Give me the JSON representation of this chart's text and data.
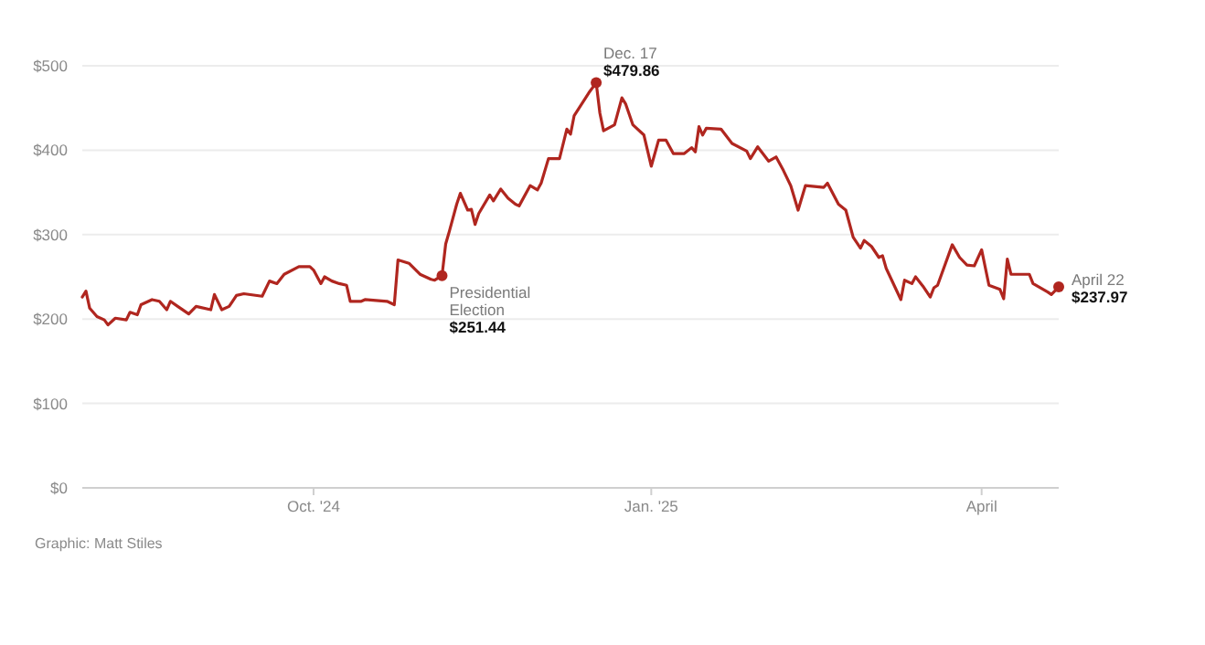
{
  "chart_data": {
    "type": "line",
    "color": "#b0261f",
    "grid": "y",
    "marker": "none",
    "line_style": "solid",
    "x": [
      "2024-07-30",
      "2024-07-31",
      "2024-08-01",
      "2024-08-03",
      "2024-08-05",
      "2024-08-06",
      "2024-08-08",
      "2024-08-11",
      "2024-08-12",
      "2024-08-14",
      "2024-08-15",
      "2024-08-18",
      "2024-08-20",
      "2024-08-22",
      "2024-08-23",
      "2024-08-25",
      "2024-08-28",
      "2024-08-30",
      "2024-09-03",
      "2024-09-04",
      "2024-09-06",
      "2024-09-08",
      "2024-09-10",
      "2024-09-12",
      "2024-09-17",
      "2024-09-19",
      "2024-09-21",
      "2024-09-23",
      "2024-09-27",
      "2024-09-30",
      "2024-10-01",
      "2024-10-03",
      "2024-10-04",
      "2024-10-06",
      "2024-10-08",
      "2024-10-10",
      "2024-10-11",
      "2024-10-14",
      "2024-10-15",
      "2024-10-21",
      "2024-10-23",
      "2024-10-24",
      "2024-10-27",
      "2024-10-30",
      "2024-11-02",
      "2024-11-03",
      "2024-11-05",
      "2024-11-06",
      "2024-11-07",
      "2024-11-09",
      "2024-11-10",
      "2024-11-12",
      "2024-11-13",
      "2024-11-14",
      "2024-11-15",
      "2024-11-18",
      "2024-11-19",
      "2024-11-21",
      "2024-11-23",
      "2024-11-25",
      "2024-11-26",
      "2024-11-29",
      "2024-12-01",
      "2024-12-02",
      "2024-12-04",
      "2024-12-07",
      "2024-12-09",
      "2024-12-10",
      "2024-12-11",
      "2024-12-15",
      "2024-12-17",
      "2024-12-18",
      "2024-12-19",
      "2024-12-22",
      "2024-12-24",
      "2024-12-25",
      "2024-12-27",
      "2024-12-30",
      "2025-01-01",
      "2025-01-03",
      "2025-01-05",
      "2025-01-07",
      "2025-01-10",
      "2025-01-12",
      "2025-01-13",
      "2025-01-14",
      "2025-01-15",
      "2025-01-16",
      "2025-01-20",
      "2025-01-23",
      "2025-01-27",
      "2025-01-28",
      "2025-01-30",
      "2025-02-02",
      "2025-02-04",
      "2025-02-06",
      "2025-02-08",
      "2025-02-10",
      "2025-02-12",
      "2025-02-17",
      "2025-02-18",
      "2025-02-21",
      "2025-02-23",
      "2025-02-25",
      "2025-02-27",
      "2025-02-28",
      "2025-03-02",
      "2025-03-04",
      "2025-03-05",
      "2025-03-06",
      "2025-03-10",
      "2025-03-11",
      "2025-03-13",
      "2025-03-14",
      "2025-03-16",
      "2025-03-18",
      "2025-03-19",
      "2025-03-20",
      "2025-03-24",
      "2025-03-26",
      "2025-03-28",
      "2025-03-30",
      "2025-04-01",
      "2025-04-03",
      "2025-04-06",
      "2025-04-07",
      "2025-04-08",
      "2025-04-09",
      "2025-04-14",
      "2025-04-15",
      "2025-04-19",
      "2025-04-20",
      "2025-04-22"
    ],
    "values": [
      226,
      233,
      213,
      203,
      199,
      193,
      201,
      199,
      208,
      205,
      217,
      223,
      221,
      211,
      221,
      215,
      206,
      215,
      211,
      229,
      211,
      215,
      228,
      230,
      227,
      245,
      242,
      253,
      262,
      262,
      258,
      242,
      250,
      245,
      242,
      240,
      221,
      221,
      223,
      221,
      217,
      270,
      266,
      253,
      247,
      246,
      251.44,
      289,
      304,
      336,
      349,
      329,
      330,
      312,
      325,
      347,
      340,
      354,
      343,
      336,
      334,
      358,
      353,
      361,
      390,
      390,
      425,
      419,
      441,
      468,
      479.86,
      444,
      423,
      430,
      462,
      455,
      430,
      418,
      381,
      412,
      412,
      396,
      396,
      403,
      398,
      428,
      418,
      426,
      425,
      408,
      399,
      390,
      404,
      387,
      392,
      376,
      358,
      329,
      358,
      356,
      361,
      336,
      329,
      297,
      284,
      293,
      286,
      273,
      275,
      260,
      223,
      246,
      242,
      250,
      239,
      226,
      237,
      240,
      288,
      273,
      264,
      263,
      282,
      240,
      235,
      224,
      271,
      253,
      253,
      242,
      232,
      229,
      237.97
    ],
    "xlim": [
      "2024-07-30",
      "2025-04-22"
    ],
    "xticks": [
      {
        "value": "2024-10-01",
        "label": "Oct. '24"
      },
      {
        "value": "2025-01-01",
        "label": "Jan. '25"
      },
      {
        "value": "2025-04-01",
        "label": "April"
      }
    ],
    "ylim": [
      0,
      500
    ],
    "yticks": [
      {
        "value": 0,
        "label": "$0"
      },
      {
        "value": 100,
        "label": "$100"
      },
      {
        "value": 200,
        "label": "$200"
      },
      {
        "value": 300,
        "label": "$300"
      },
      {
        "value": 400,
        "label": "$400"
      },
      {
        "value": 500,
        "label": "$500"
      }
    ],
    "annotations": [
      {
        "text": "Presidential\nElection\n$251.44",
        "x": "2024-11-05",
        "y": 251.44
      },
      {
        "text": "Dec. 17\n$479.86",
        "x": "2024-12-17",
        "y": 479.86
      },
      {
        "text": "April 22\n$237.97",
        "x": "2025-04-22",
        "y": 237.97
      },
      "Graphic: Matt Stiles"
    ]
  }
}
